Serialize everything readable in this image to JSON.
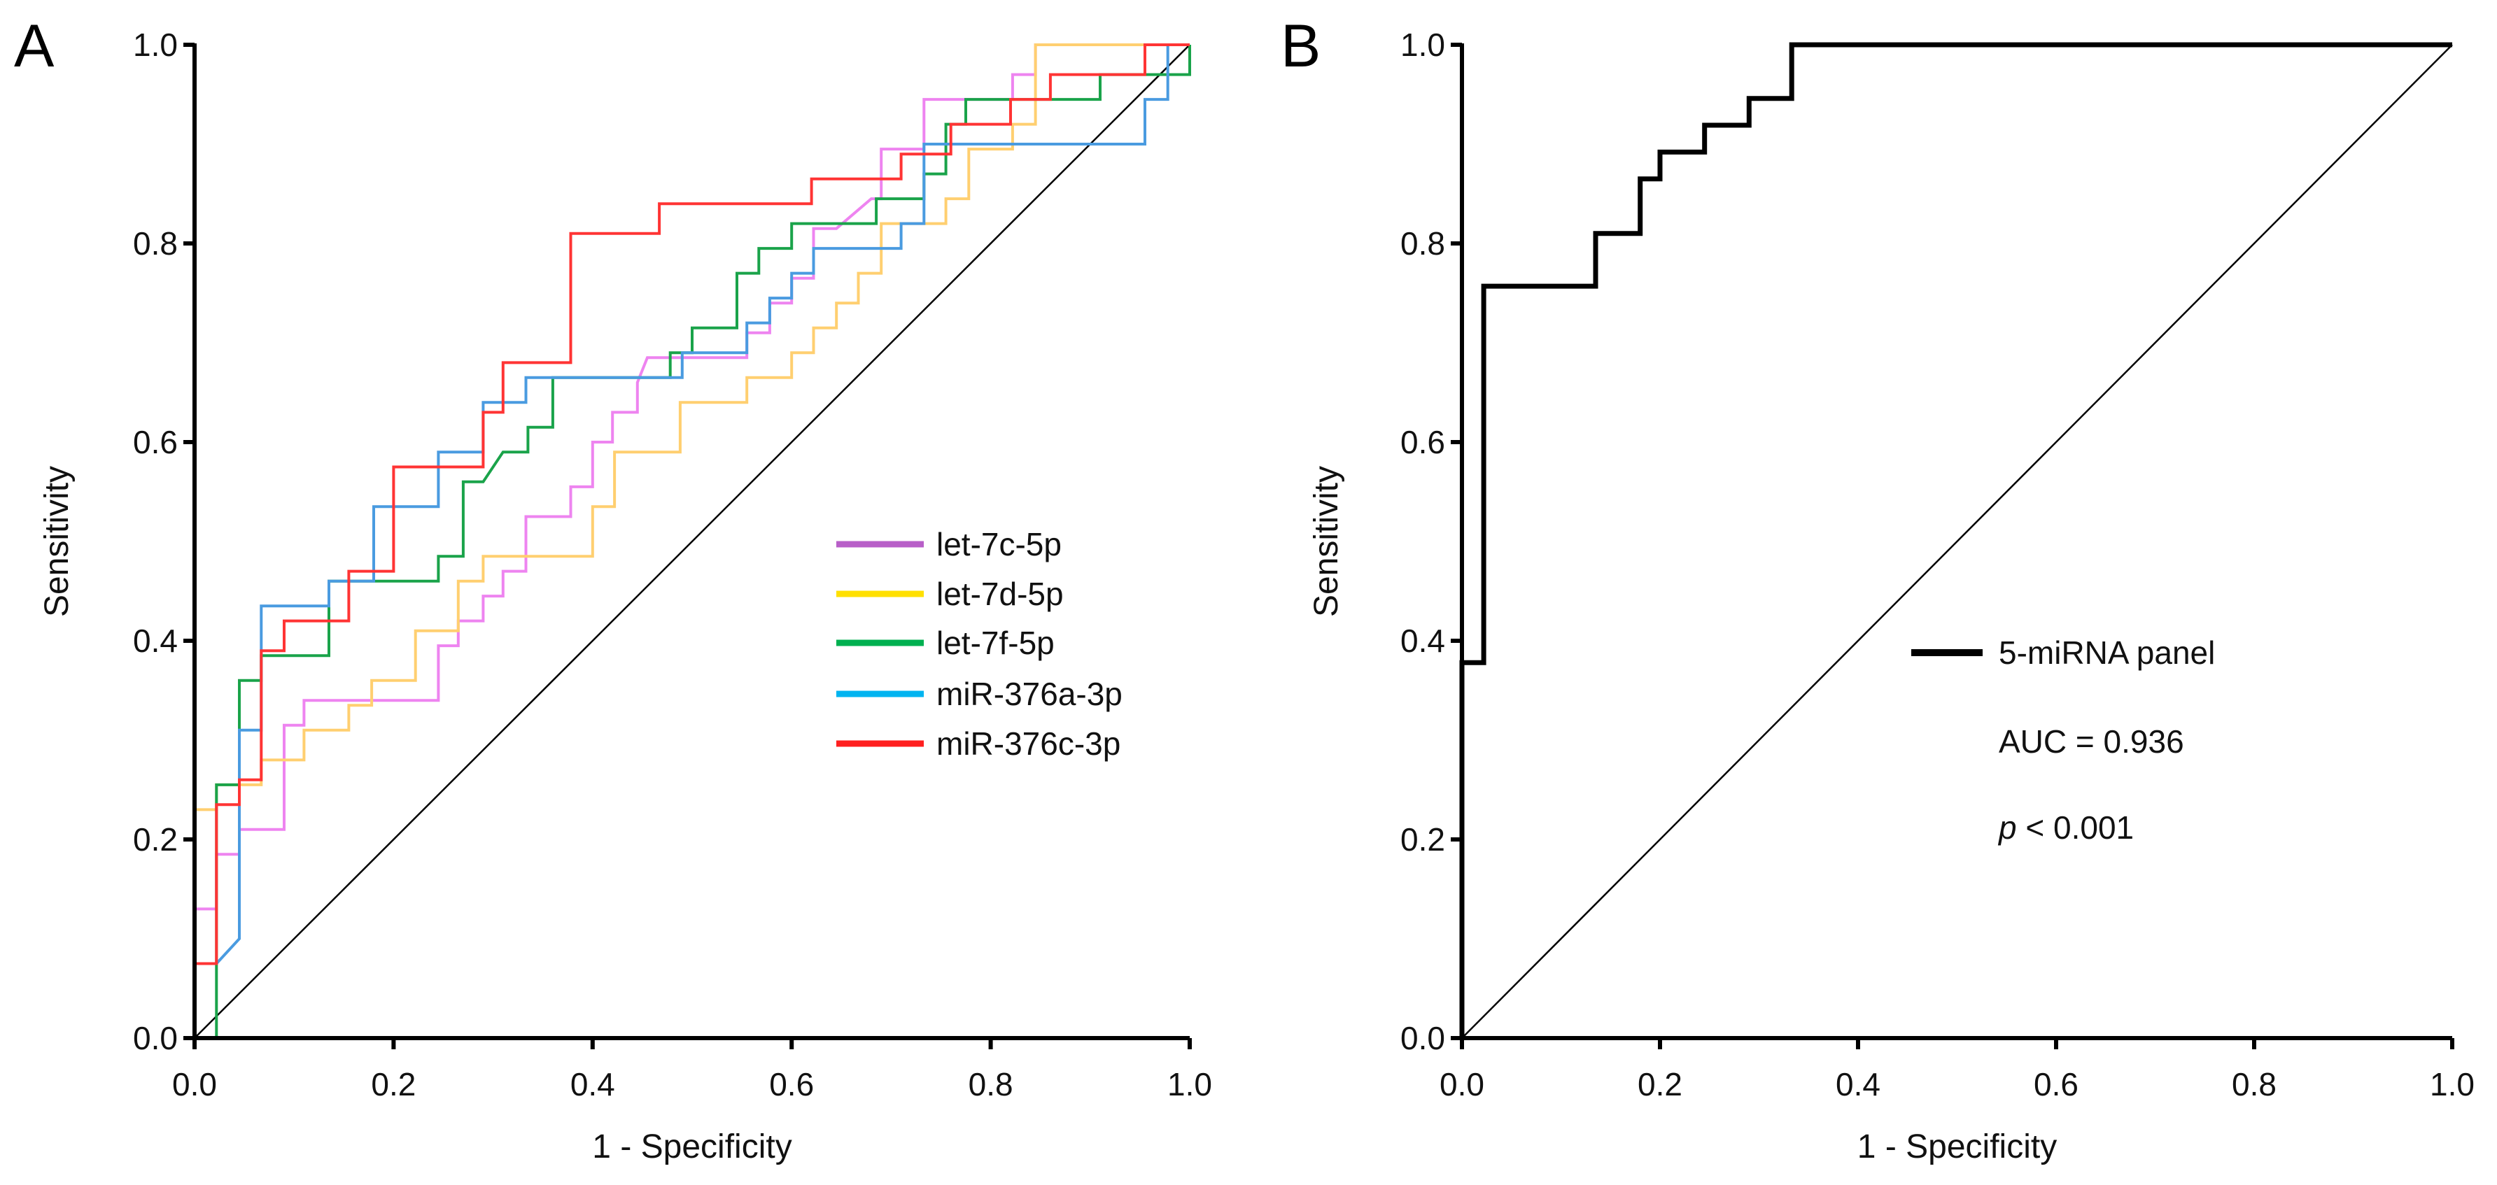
{
  "chart_data": [
    {
      "type": "line",
      "panel_label": "A",
      "xlabel": "1 - Specificity",
      "ylabel": "Sensitivity",
      "xlim": [
        0,
        1
      ],
      "ylim": [
        0,
        1
      ],
      "xticks": [
        "0.0",
        "0.2",
        "0.4",
        "0.6",
        "0.8",
        "1.0"
      ],
      "yticks": [
        "0.0",
        "0.2",
        "0.4",
        "0.6",
        "0.8",
        "1.0"
      ],
      "grid": false,
      "legend_position": "bottom-right",
      "reference_line": [
        [
          0,
          0
        ],
        [
          1,
          1
        ]
      ],
      "series": [
        {
          "name": "let-7c-5p",
          "color": "#ee84f0",
          "legend_color": "#b85fc8",
          "points": [
            [
              0,
              0
            ],
            [
              0,
              0.13
            ],
            [
              0.022,
              0.13
            ],
            [
              0.022,
              0.185
            ],
            [
              0.045,
              0.185
            ],
            [
              0.045,
              0.21
            ],
            [
              0.09,
              0.21
            ],
            [
              0.09,
              0.315
            ],
            [
              0.11,
              0.315
            ],
            [
              0.11,
              0.34
            ],
            [
              0.245,
              0.34
            ],
            [
              0.245,
              0.395
            ],
            [
              0.265,
              0.395
            ],
            [
              0.265,
              0.42
            ],
            [
              0.29,
              0.42
            ],
            [
              0.29,
              0.445
            ],
            [
              0.31,
              0.445
            ],
            [
              0.31,
              0.47
            ],
            [
              0.333,
              0.47
            ],
            [
              0.333,
              0.525
            ],
            [
              0.378,
              0.525
            ],
            [
              0.378,
              0.555
            ],
            [
              0.4,
              0.555
            ],
            [
              0.4,
              0.6
            ],
            [
              0.42,
              0.6
            ],
            [
              0.42,
              0.63
            ],
            [
              0.445,
              0.63
            ],
            [
              0.445,
              0.66
            ],
            [
              0.455,
              0.685
            ],
            [
              0.555,
              0.685
            ],
            [
              0.555,
              0.71
            ],
            [
              0.578,
              0.71
            ],
            [
              0.578,
              0.74
            ],
            [
              0.6,
              0.74
            ],
            [
              0.6,
              0.765
            ],
            [
              0.622,
              0.765
            ],
            [
              0.622,
              0.815
            ],
            [
              0.645,
              0.815
            ],
            [
              0.68,
              0.845
            ],
            [
              0.69,
              0.845
            ],
            [
              0.69,
              0.895
            ],
            [
              0.733,
              0.895
            ],
            [
              0.733,
              0.945
            ],
            [
              0.822,
              0.945
            ],
            [
              0.822,
              0.97
            ],
            [
              0.845,
              0.97
            ],
            [
              0.845,
              1
            ],
            [
              1,
              1
            ]
          ]
        },
        {
          "name": "let-7d-5p",
          "color": "#ffcf70",
          "legend_color": "#ffe000",
          "points": [
            [
              0,
              0
            ],
            [
              0,
              0.23
            ],
            [
              0.022,
              0.23
            ],
            [
              0.022,
              0.255
            ],
            [
              0.067,
              0.255
            ],
            [
              0.067,
              0.28
            ],
            [
              0.11,
              0.28
            ],
            [
              0.11,
              0.31
            ],
            [
              0.155,
              0.31
            ],
            [
              0.155,
              0.335
            ],
            [
              0.178,
              0.335
            ],
            [
              0.178,
              0.36
            ],
            [
              0.222,
              0.36
            ],
            [
              0.222,
              0.41
            ],
            [
              0.265,
              0.41
            ],
            [
              0.265,
              0.46
            ],
            [
              0.29,
              0.46
            ],
            [
              0.29,
              0.485
            ],
            [
              0.4,
              0.485
            ],
            [
              0.4,
              0.535
            ],
            [
              0.422,
              0.535
            ],
            [
              0.422,
              0.59
            ],
            [
              0.488,
              0.59
            ],
            [
              0.488,
              0.64
            ],
            [
              0.555,
              0.64
            ],
            [
              0.555,
              0.665
            ],
            [
              0.6,
              0.665
            ],
            [
              0.6,
              0.69
            ],
            [
              0.622,
              0.69
            ],
            [
              0.622,
              0.715
            ],
            [
              0.645,
              0.715
            ],
            [
              0.645,
              0.74
            ],
            [
              0.667,
              0.74
            ],
            [
              0.667,
              0.77
            ],
            [
              0.69,
              0.77
            ],
            [
              0.69,
              0.82
            ],
            [
              0.755,
              0.82
            ],
            [
              0.755,
              0.845
            ],
            [
              0.778,
              0.845
            ],
            [
              0.778,
              0.895
            ],
            [
              0.822,
              0.895
            ],
            [
              0.822,
              0.92
            ],
            [
              0.845,
              0.92
            ],
            [
              0.845,
              1
            ],
            [
              1,
              1
            ]
          ]
        },
        {
          "name": "let-7f-5p",
          "color": "#1aa34a",
          "legend_color": "#00b050",
          "points": [
            [
              0,
              0
            ],
            [
              0.022,
              0
            ],
            [
              0.022,
              0.255
            ],
            [
              0.045,
              0.255
            ],
            [
              0.045,
              0.36
            ],
            [
              0.067,
              0.36
            ],
            [
              0.067,
              0.385
            ],
            [
              0.135,
              0.385
            ],
            [
              0.135,
              0.46
            ],
            [
              0.245,
              0.46
            ],
            [
              0.245,
              0.485
            ],
            [
              0.27,
              0.485
            ],
            [
              0.27,
              0.56
            ],
            [
              0.29,
              0.56
            ],
            [
              0.31,
              0.59
            ],
            [
              0.335,
              0.59
            ],
            [
              0.335,
              0.615
            ],
            [
              0.36,
              0.615
            ],
            [
              0.36,
              0.665
            ],
            [
              0.478,
              0.665
            ],
            [
              0.478,
              0.69
            ],
            [
              0.5,
              0.69
            ],
            [
              0.5,
              0.715
            ],
            [
              0.545,
              0.715
            ],
            [
              0.545,
              0.77
            ],
            [
              0.567,
              0.77
            ],
            [
              0.567,
              0.795
            ],
            [
              0.6,
              0.795
            ],
            [
              0.6,
              0.82
            ],
            [
              0.685,
              0.82
            ],
            [
              0.685,
              0.845
            ],
            [
              0.733,
              0.845
            ],
            [
              0.733,
              0.87
            ],
            [
              0.755,
              0.87
            ],
            [
              0.755,
              0.92
            ],
            [
              0.775,
              0.92
            ],
            [
              0.775,
              0.945
            ],
            [
              0.91,
              0.945
            ],
            [
              0.91,
              0.97
            ],
            [
              1,
              0.97
            ],
            [
              1,
              1
            ]
          ]
        },
        {
          "name": "miR-376a-3p",
          "color": "#4a9be0",
          "legend_color": "#00b4f0",
          "points": [
            [
              0,
              0
            ],
            [
              0,
              0.075
            ],
            [
              0.022,
              0.075
            ],
            [
              0.045,
              0.1
            ],
            [
              0.045,
              0.31
            ],
            [
              0.067,
              0.31
            ],
            [
              0.067,
              0.435
            ],
            [
              0.135,
              0.435
            ],
            [
              0.135,
              0.46
            ],
            [
              0.18,
              0.46
            ],
            [
              0.18,
              0.535
            ],
            [
              0.245,
              0.535
            ],
            [
              0.245,
              0.59
            ],
            [
              0.29,
              0.59
            ],
            [
              0.29,
              0.64
            ],
            [
              0.333,
              0.64
            ],
            [
              0.333,
              0.665
            ],
            [
              0.49,
              0.665
            ],
            [
              0.49,
              0.69
            ],
            [
              0.555,
              0.69
            ],
            [
              0.555,
              0.72
            ],
            [
              0.578,
              0.72
            ],
            [
              0.578,
              0.745
            ],
            [
              0.6,
              0.745
            ],
            [
              0.6,
              0.77
            ],
            [
              0.622,
              0.77
            ],
            [
              0.622,
              0.795
            ],
            [
              0.71,
              0.795
            ],
            [
              0.71,
              0.82
            ],
            [
              0.733,
              0.82
            ],
            [
              0.733,
              0.9
            ],
            [
              0.955,
              0.9
            ],
            [
              0.955,
              0.945
            ],
            [
              0.978,
              0.945
            ],
            [
              0.978,
              1
            ],
            [
              1,
              1
            ]
          ]
        },
        {
          "name": "miR-376c-3p",
          "color": "#ff3434",
          "legend_color": "#ff2020",
          "points": [
            [
              0,
              0
            ],
            [
              0,
              0.075
            ],
            [
              0.022,
              0.075
            ],
            [
              0.022,
              0.235
            ],
            [
              0.045,
              0.235
            ],
            [
              0.045,
              0.26
            ],
            [
              0.067,
              0.26
            ],
            [
              0.067,
              0.39
            ],
            [
              0.09,
              0.39
            ],
            [
              0.09,
              0.42
            ],
            [
              0.155,
              0.42
            ],
            [
              0.155,
              0.47
            ],
            [
              0.2,
              0.47
            ],
            [
              0.2,
              0.575
            ],
            [
              0.29,
              0.575
            ],
            [
              0.29,
              0.63
            ],
            [
              0.31,
              0.63
            ],
            [
              0.31,
              0.68
            ],
            [
              0.378,
              0.68
            ],
            [
              0.378,
              0.81
            ],
            [
              0.467,
              0.81
            ],
            [
              0.467,
              0.84
            ],
            [
              0.62,
              0.84
            ],
            [
              0.62,
              0.865
            ],
            [
              0.71,
              0.865
            ],
            [
              0.71,
              0.89
            ],
            [
              0.76,
              0.89
            ],
            [
              0.76,
              0.92
            ],
            [
              0.82,
              0.92
            ],
            [
              0.82,
              0.945
            ],
            [
              0.86,
              0.945
            ],
            [
              0.86,
              0.97
            ],
            [
              0.955,
              0.97
            ],
            [
              0.955,
              1
            ],
            [
              1,
              1
            ]
          ]
        }
      ]
    },
    {
      "type": "line",
      "panel_label": "B",
      "xlabel": "1 - Specificity",
      "ylabel": "Sensitivity",
      "xlim": [
        0,
        1
      ],
      "ylim": [
        0,
        1
      ],
      "xticks": [
        "0.0",
        "0.2",
        "0.4",
        "0.6",
        "0.8",
        "1.0"
      ],
      "yticks": [
        "0.0",
        "0.2",
        "0.4",
        "0.6",
        "0.8",
        "1.0"
      ],
      "grid": false,
      "legend_position": "center-right",
      "reference_line": [
        [
          0,
          0
        ],
        [
          1,
          1
        ]
      ],
      "series": [
        {
          "name": "5-miRNA panel",
          "color": "#000000",
          "legend_color": "#000000",
          "points": [
            [
              0,
              0
            ],
            [
              0,
              0.378
            ],
            [
              0.022,
              0.378
            ],
            [
              0.022,
              0.757
            ],
            [
              0.135,
              0.757
            ],
            [
              0.135,
              0.81
            ],
            [
              0.18,
              0.81
            ],
            [
              0.18,
              0.865
            ],
            [
              0.2,
              0.865
            ],
            [
              0.2,
              0.892
            ],
            [
              0.245,
              0.892
            ],
            [
              0.245,
              0.919
            ],
            [
              0.29,
              0.919
            ],
            [
              0.29,
              0.946
            ],
            [
              0.333,
              0.946
            ],
            [
              0.333,
              1
            ],
            [
              1,
              1
            ]
          ]
        }
      ],
      "annotations": {
        "auc": "AUC = 0.936",
        "p_symbol": "p",
        "p_rest": " < 0.001"
      }
    }
  ]
}
